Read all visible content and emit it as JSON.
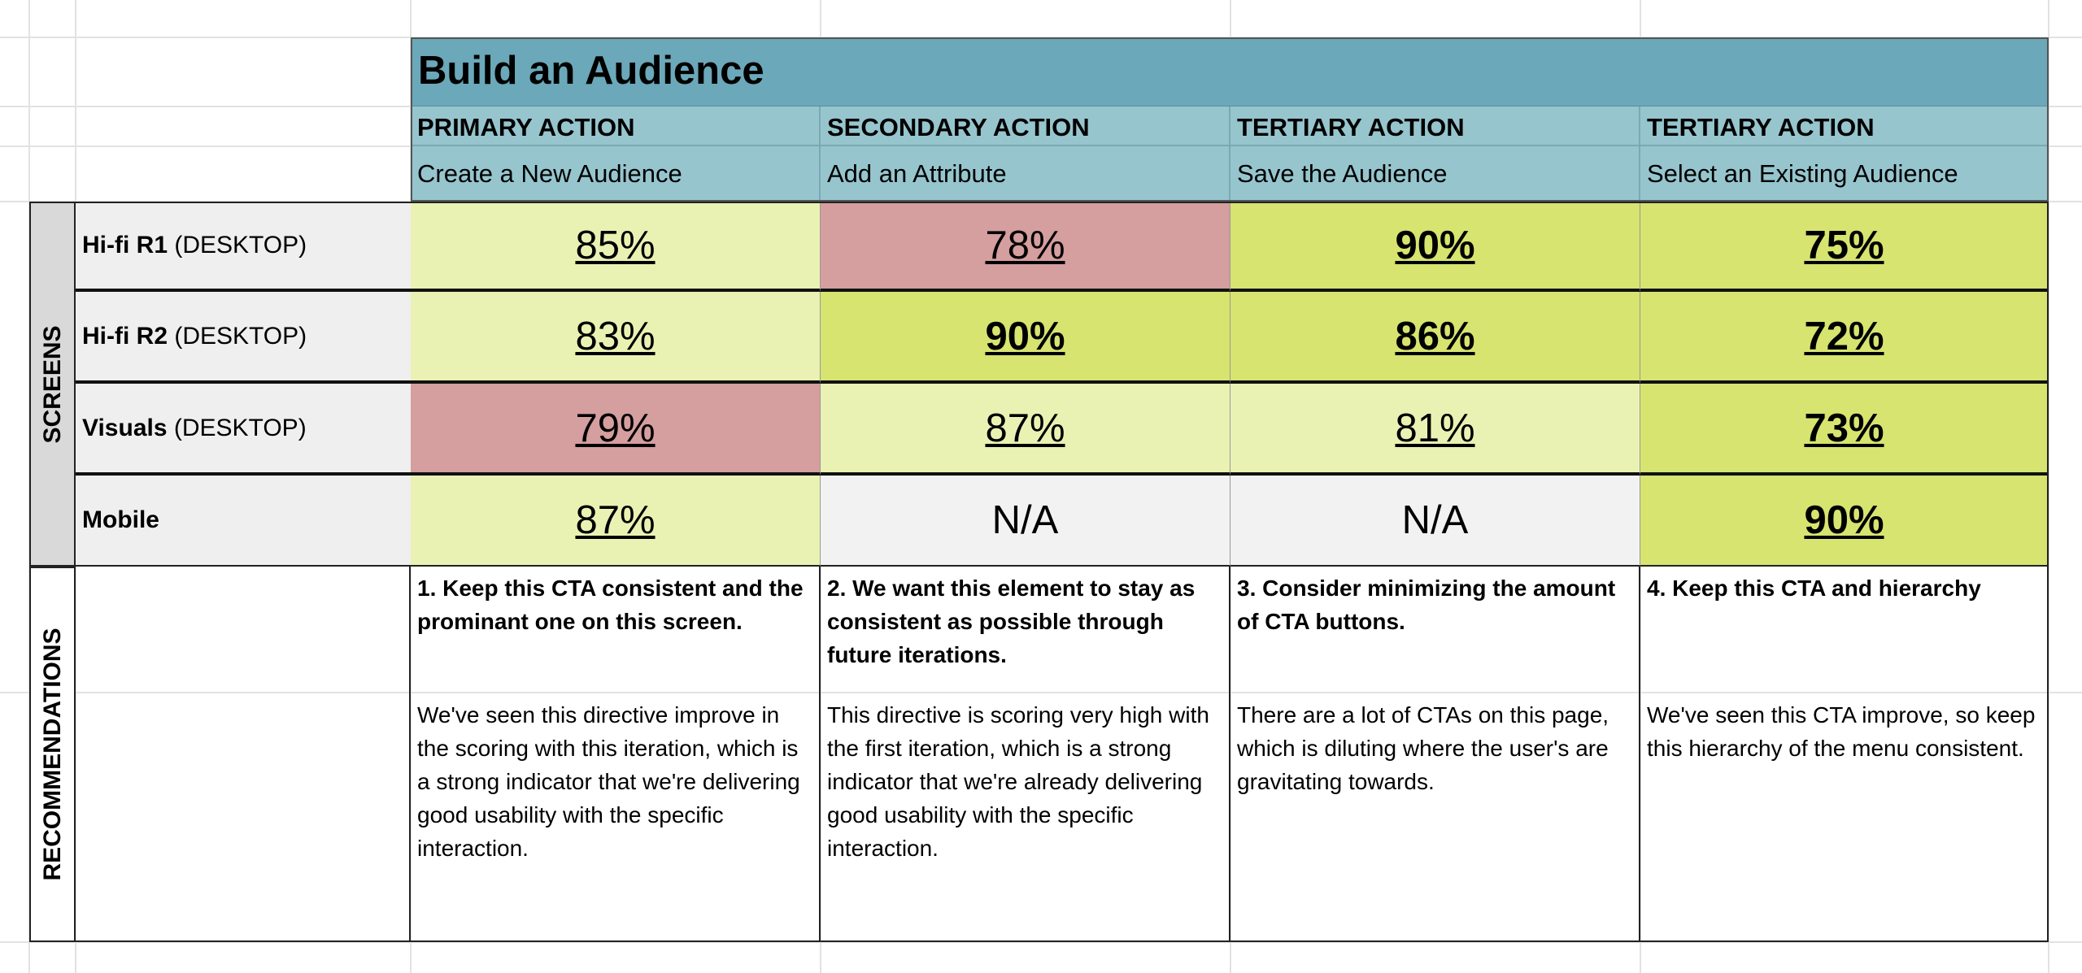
{
  "title": "Build an Audience",
  "columns": [
    {
      "action": "PRIMARY ACTION",
      "task": "Create a New Audience"
    },
    {
      "action": "SECONDARY ACTION",
      "task": "Add an Attribute"
    },
    {
      "action": "TERTIARY ACTION",
      "task": "Save the Audience"
    },
    {
      "action": "TERTIARY ACTION",
      "task": "Select an Existing Audience"
    }
  ],
  "side_labels": {
    "screens": "SCREENS",
    "recommendations": "RECOMMENDATIONS"
  },
  "rows": [
    {
      "label": "Hi-fi R1",
      "suffix": "(DESKTOP)",
      "cells": [
        {
          "text": "85%",
          "fill": "#eaf2b3",
          "bold": false,
          "underline": true
        },
        {
          "text": "78%",
          "fill": "#d59e9f",
          "bold": false,
          "underline": true
        },
        {
          "text": "90%",
          "fill": "#d7e46f",
          "bold": true,
          "underline": true
        },
        {
          "text": "75%",
          "fill": "#d7e46f",
          "bold": true,
          "underline": true
        }
      ]
    },
    {
      "label": "Hi-fi R2",
      "suffix": "(DESKTOP)",
      "cells": [
        {
          "text": "83%",
          "fill": "#eaf2b3",
          "bold": false,
          "underline": true
        },
        {
          "text": "90%",
          "fill": "#d7e46f",
          "bold": true,
          "underline": true
        },
        {
          "text": "86%",
          "fill": "#d7e46f",
          "bold": true,
          "underline": true
        },
        {
          "text": "72%",
          "fill": "#d7e46f",
          "bold": true,
          "underline": true
        }
      ]
    },
    {
      "label": "Visuals",
      "suffix": "(DESKTOP)",
      "cells": [
        {
          "text": "79%",
          "fill": "#d59e9f",
          "bold": false,
          "underline": true
        },
        {
          "text": "87%",
          "fill": "#eaf2b3",
          "bold": false,
          "underline": true
        },
        {
          "text": "81%",
          "fill": "#eaf2b3",
          "bold": false,
          "underline": true
        },
        {
          "text": "73%",
          "fill": "#d7e46f",
          "bold": true,
          "underline": true
        }
      ]
    },
    {
      "label": "Mobile",
      "cells": [
        {
          "text": "87%",
          "fill": "#eaf2b3",
          "bold": false,
          "underline": true
        },
        {
          "text": "N/A",
          "fill": "#f2f2f2",
          "bold": false,
          "underline": false
        },
        {
          "text": "N/A",
          "fill": "#f2f2f2",
          "bold": false,
          "underline": false
        },
        {
          "text": "90%",
          "fill": "#d7e46f",
          "bold": true,
          "underline": true
        }
      ]
    }
  ],
  "recommendations": [
    {
      "heading": "1. Keep this CTA consistent and the prominant one on this screen.",
      "body": "We've seen this directive improve in the scoring with this iteration, which is a strong indicator that we're delivering good usability with the specific interaction."
    },
    {
      "heading": "2. We want this element to stay as consistent as possible through future iterations.",
      "body": "This directive is scoring very high with the first iteration, which is a strong indicator that we're already delivering good usability with the specific interaction."
    },
    {
      "heading": "3. Consider minimizing the amount of CTA buttons.",
      "body": "There are a lot of CTAs on this page, which is diluting where the user's are gravitating towards."
    },
    {
      "heading": "4. Keep this CTA and hierarchy",
      "body": "We've seen this CTA improve, so keep this hierarchy of the menu consistent."
    }
  ]
}
